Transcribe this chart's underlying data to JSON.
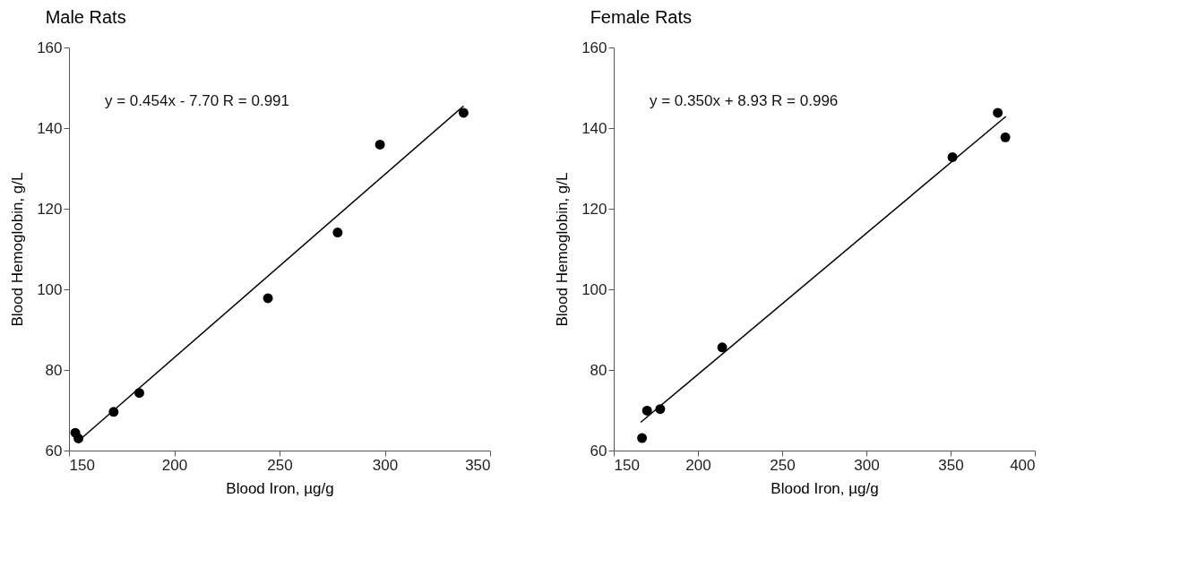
{
  "chart_data": [
    {
      "type": "scatter",
      "title": "Male Rats",
      "xlabel": "Blood Iron, µg/g",
      "ylabel": "Blood Hemoglobin, g/L",
      "annotations": [
        "y = 0.454x - 7.70   R = 0.991"
      ],
      "xlim": [
        150,
        350
      ],
      "ylim": [
        60,
        160
      ],
      "xticks": [
        150,
        200,
        250,
        300,
        350
      ],
      "yticks": [
        60,
        80,
        100,
        120,
        140,
        160
      ],
      "grid": false,
      "series": [
        {
          "color": "#000000",
          "marker": "circle",
          "x": [
            153,
            154.5,
            171.2,
            183.4,
            244.5,
            277.6,
            297.7,
            337.4
          ],
          "values": [
            64.4,
            63.0,
            69.6,
            74.3,
            97.8,
            114.1,
            135.9,
            143.8
          ]
        },
        {
          "type": "line",
          "color": "#000000",
          "line_style": "solid",
          "x": [
            154.5,
            337.4
          ],
          "values": [
            62.4,
            145.5
          ]
        }
      ]
    },
    {
      "type": "scatter",
      "title": "Female Rats",
      "xlabel": "Blood Iron, µg/g",
      "ylabel": "Blood Hemoglobin, g/L",
      "annotations": [
        "y = 0.350x + 8.93   R = 0.996"
      ],
      "xlim": [
        150,
        400
      ],
      "ylim": [
        60,
        160
      ],
      "xticks": [
        150,
        200,
        250,
        300,
        350,
        400
      ],
      "yticks": [
        60,
        80,
        100,
        120,
        140,
        160
      ],
      "grid": false,
      "series": [
        {
          "color": "#000000",
          "marker": "circle",
          "x": [
            166.8,
            169.8,
            177.6,
            214.4,
            351.1,
            378.0,
            382.5
          ],
          "values": [
            63.1,
            69.9,
            70.3,
            85.6,
            132.8,
            143.8,
            137.7
          ]
        },
        {
          "type": "line",
          "color": "#000000",
          "line_style": "solid",
          "x": [
            166.0,
            382.8
          ],
          "values": [
            67.0,
            142.9
          ]
        }
      ]
    }
  ]
}
